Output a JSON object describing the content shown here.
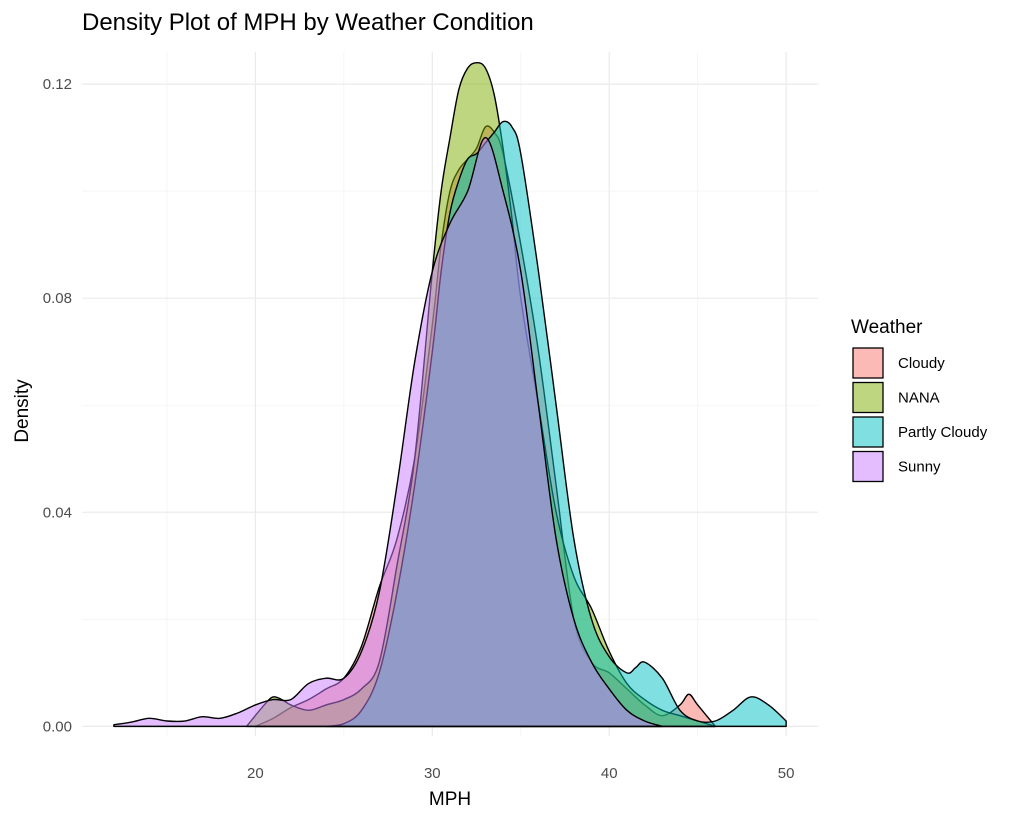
{
  "chart_data": {
    "type": "area",
    "title": "Density Plot of MPH by Weather Condition",
    "xlabel": "MPH",
    "ylabel": "Density",
    "xlim": [
      10.2,
      51.8
    ],
    "ylim": [
      -0.0018,
      0.126
    ],
    "x_ticks": [
      20,
      30,
      40,
      50
    ],
    "x_tick_labels": [
      "20",
      "30",
      "40",
      "50"
    ],
    "y_ticks": [
      0,
      0.04,
      0.08,
      0.12
    ],
    "y_tick_labels": [
      "0.00",
      "0.04",
      "0.08",
      "0.12"
    ],
    "grid": true,
    "legend": {
      "title": "Weather",
      "position": "right"
    },
    "series": [
      {
        "name": "Cloudy",
        "color": "#F8766D",
        "x": [
          20,
          21,
          22,
          23,
          24,
          25,
          26,
          27,
          28,
          29,
          30,
          30.5,
          31,
          31.5,
          32,
          32.5,
          33,
          33.5,
          34,
          35,
          36,
          37,
          38,
          39,
          40,
          41,
          42,
          43,
          44,
          44.5,
          45,
          46
        ],
        "y": [
          0.0,
          0.0015,
          0.0035,
          0.005,
          0.007,
          0.009,
          0.015,
          0.026,
          0.035,
          0.05,
          0.075,
          0.09,
          0.1,
          0.104,
          0.106,
          0.108,
          0.112,
          0.111,
          0.107,
          0.09,
          0.07,
          0.045,
          0.02,
          0.012,
          0.01,
          0.007,
          0.004,
          0.002,
          0.004,
          0.006,
          0.004,
          0.0
        ]
      },
      {
        "name": "NANA",
        "color": "#7CAE00",
        "x": [
          19.5,
          20.5,
          21,
          21.5,
          22,
          23,
          24,
          25,
          26,
          27,
          28,
          29,
          30,
          30.5,
          31,
          31.5,
          32,
          32.5,
          33,
          33.5,
          34,
          34.5,
          35,
          36,
          37,
          38,
          39,
          40,
          41,
          42,
          43,
          44,
          45,
          46
        ],
        "y": [
          0.0,
          0.004,
          0.0055,
          0.005,
          0.004,
          0.003,
          0.004,
          0.005,
          0.007,
          0.012,
          0.03,
          0.05,
          0.085,
          0.1,
          0.11,
          0.119,
          0.123,
          0.124,
          0.123,
          0.118,
          0.108,
          0.095,
          0.08,
          0.06,
          0.04,
          0.028,
          0.022,
          0.014,
          0.008,
          0.005,
          0.003,
          0.002,
          0.001,
          0.0
        ]
      },
      {
        "name": "Partly Cloudy",
        "color": "#00BFC4",
        "x": [
          24,
          25,
          26,
          27,
          28,
          29,
          30,
          30.5,
          31,
          31.5,
          32,
          32.5,
          33,
          33.5,
          34,
          34.5,
          35,
          36,
          37,
          38,
          39,
          40,
          41,
          41.5,
          42,
          43,
          44,
          45,
          46,
          47,
          48,
          49,
          50
        ],
        "y": [
          0.0,
          0.0005,
          0.003,
          0.01,
          0.025,
          0.045,
          0.07,
          0.085,
          0.096,
          0.102,
          0.106,
          0.107,
          0.109,
          0.111,
          0.113,
          0.112,
          0.107,
          0.085,
          0.06,
          0.035,
          0.02,
          0.013,
          0.01,
          0.011,
          0.012,
          0.009,
          0.003,
          0.001,
          0.001,
          0.003,
          0.0055,
          0.004,
          0.001
        ]
      },
      {
        "name": "Sunny",
        "color": "#C77CFF",
        "x": [
          12,
          13,
          14,
          15,
          16,
          17,
          18,
          19,
          20,
          21,
          22,
          23,
          24,
          25,
          26,
          27,
          28,
          29,
          30,
          31,
          32,
          33,
          34,
          35,
          36,
          37,
          38,
          39,
          40,
          41,
          42,
          43
        ],
        "y": [
          0.0003,
          0.0008,
          0.0015,
          0.001,
          0.001,
          0.0018,
          0.0015,
          0.0025,
          0.004,
          0.005,
          0.005,
          0.008,
          0.009,
          0.009,
          0.014,
          0.025,
          0.045,
          0.068,
          0.085,
          0.094,
          0.1,
          0.11,
          0.1,
          0.085,
          0.06,
          0.035,
          0.02,
          0.012,
          0.007,
          0.003,
          0.001,
          0.0
        ]
      }
    ]
  }
}
